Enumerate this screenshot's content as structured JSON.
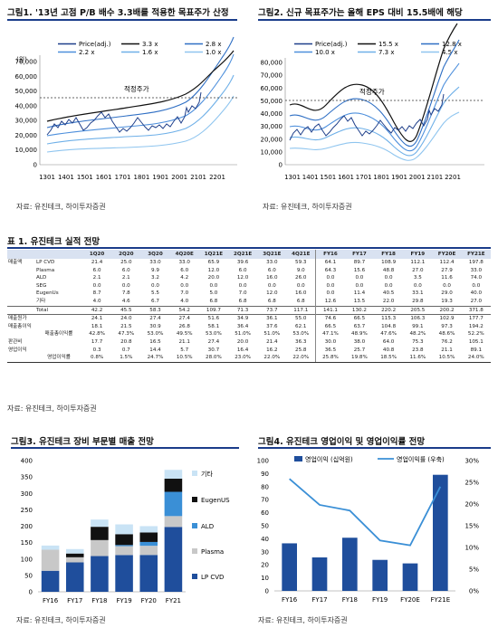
{
  "fig1": {
    "title": "그림1. '13년 고점 P/B 배수 3.3배를 적용한 목표주가 산정",
    "unit": "(원)",
    "legend": [
      "Price(adj.)",
      "3.3 x",
      "2.8 x",
      "2.2 x",
      "1.6 x",
      "1.0 x"
    ],
    "y_ticks": [
      "70,000",
      "60,000",
      "50,000",
      "40,000",
      "30,000",
      "20,000",
      "10,000",
      "0"
    ],
    "x_ticks": [
      "1301",
      "1401",
      "1501",
      "1601",
      "1701",
      "1801",
      "1901",
      "2001",
      "2101",
      "2201"
    ],
    "target_label": "적정주가",
    "source": "자료: 유진테크, 하이투자증권"
  },
  "fig2": {
    "title": "그림2. 신규 목표주가는 올해 EPS 대비 15.5배에 해당",
    "legend": [
      "Price(adj.)",
      "15.5 x",
      "12.8 x",
      "10.0 x",
      "7.3 x",
      "4.5 x"
    ],
    "y_ticks": [
      "80,000",
      "70,000",
      "60,000",
      "50,000",
      "40,000",
      "30,000",
      "20,000",
      "10,000",
      "0"
    ],
    "x_ticks": [
      "1301",
      "1401",
      "1501",
      "1601",
      "1701",
      "1801",
      "1901",
      "2001",
      "2101",
      "2201"
    ],
    "target_label": "적정주가",
    "source": "자료: 유진테크, 하이투자증권"
  },
  "table": {
    "title": "표 1. 유진테크 실적 전망",
    "headers": [
      "",
      "",
      "1Q20",
      "2Q20",
      "3Q20",
      "4Q20E",
      "1Q21E",
      "2Q21E",
      "3Q21E",
      "4Q21E",
      "FY16",
      "FY17",
      "FY18",
      "FY19",
      "FY20E",
      "FY21E"
    ],
    "rows": [
      [
        "매출액",
        "LP CVD",
        "21.4",
        "25.0",
        "33.0",
        "33.0",
        "65.9",
        "39.6",
        "33.0",
        "59.3",
        "64.1",
        "89.7",
        "108.9",
        "112.1",
        "112.4",
        "197.8"
      ],
      [
        "",
        "Plasma",
        "6.0",
        "6.0",
        "9.9",
        "6.0",
        "12.0",
        "6.0",
        "6.0",
        "9.0",
        "64.3",
        "15.6",
        "48.8",
        "27.0",
        "27.9",
        "33.0"
      ],
      [
        "",
        "ALD",
        "2.1",
        "2.1",
        "3.2",
        "4.2",
        "20.0",
        "12.0",
        "16.0",
        "26.0",
        "0.0",
        "0.0",
        "0.0",
        "3.5",
        "11.6",
        "74.0"
      ],
      [
        "",
        "SEG",
        "0.0",
        "0.0",
        "0.0",
        "0.0",
        "0.0",
        "0.0",
        "0.0",
        "0.0",
        "0.0",
        "0.0",
        "0.0",
        "0.0",
        "0.0",
        "0.0"
      ],
      [
        "",
        "EugenUs",
        "8.7",
        "7.8",
        "5.5",
        "7.0",
        "5.0",
        "7.0",
        "12.0",
        "16.0",
        "0.0",
        "11.4",
        "40.5",
        "33.1",
        "29.0",
        "40.0"
      ],
      [
        "",
        "기타",
        "4.0",
        "4.6",
        "6.7",
        "4.0",
        "6.8",
        "6.8",
        "6.8",
        "6.8",
        "12.6",
        "13.5",
        "22.0",
        "29.8",
        "19.3",
        "27.0"
      ],
      [
        "",
        "Total",
        "42.2",
        "45.5",
        "58.3",
        "54.2",
        "109.7",
        "71.3",
        "73.7",
        "117.1",
        "141.1",
        "130.2",
        "220.2",
        "205.5",
        "200.2",
        "371.8"
      ],
      [
        "매출원가",
        "",
        "24.1",
        "24.0",
        "27.4",
        "27.4",
        "51.6",
        "34.9",
        "36.1",
        "55.0",
        "74.6",
        "66.5",
        "115.3",
        "106.3",
        "102.9",
        "177.7"
      ],
      [
        "매출총이익",
        "",
        "18.1",
        "21.5",
        "30.9",
        "26.8",
        "58.1",
        "36.4",
        "37.6",
        "62.1",
        "66.5",
        "63.7",
        "104.8",
        "99.1",
        "97.3",
        "194.2"
      ],
      [
        "",
        "매출총이익률",
        "42.8%",
        "47.3%",
        "53.0%",
        "49.5%",
        "53.0%",
        "51.0%",
        "51.0%",
        "53.0%",
        "47.1%",
        "48.9%",
        "47.6%",
        "48.2%",
        "48.6%",
        "52.2%"
      ],
      [
        "판관비",
        "",
        "17.7",
        "20.8",
        "16.5",
        "21.1",
        "27.4",
        "20.0",
        "21.4",
        "36.3",
        "30.0",
        "38.0",
        "64.0",
        "75.3",
        "76.2",
        "105.1"
      ],
      [
        "영업이익",
        "",
        "0.3",
        "0.7",
        "14.4",
        "5.7",
        "30.7",
        "16.4",
        "16.2",
        "25.8",
        "36.5",
        "25.7",
        "40.8",
        "23.8",
        "21.1",
        "89.1"
      ],
      [
        "",
        "영업이익률",
        "0.8%",
        "1.5%",
        "24.7%",
        "10.5%",
        "28.0%",
        "23.0%",
        "22.0%",
        "22.0%",
        "25.8%",
        "19.8%",
        "18.5%",
        "11.6%",
        "10.5%",
        "24.0%"
      ]
    ],
    "source": "자료: 유진테크, 하이투자증권"
  },
  "fig3": {
    "title": "그림3. 유진테크 장비 부문별 매출 전망",
    "source": "자료: 유진테크, 하이투자증권"
  },
  "fig4": {
    "title": "그림4. 유진테크 영업이익 및 영업이익률 전망",
    "source": "자료: 유진테크, 하이투자증권"
  },
  "chart_data": [
    {
      "type": "bar",
      "stacked": true,
      "categories": [
        "FY16",
        "FY17",
        "FY18",
        "FY19",
        "FY20",
        "FY21"
      ],
      "series": [
        {
          "name": "LP CVD",
          "values": [
            64.1,
            89.7,
            108.9,
            112.1,
            112.4,
            197.8
          ],
          "color": "#1f4e9c"
        },
        {
          "name": "Plasma",
          "values": [
            64.3,
            15.6,
            48.8,
            27.0,
            27.9,
            33.0
          ],
          "color": "#c8c8c8"
        },
        {
          "name": "ALD",
          "values": [
            0.0,
            0.0,
            0.0,
            3.5,
            11.6,
            74.0
          ],
          "color": "#3a8fd6"
        },
        {
          "name": "EugenUS",
          "values": [
            0.0,
            11.4,
            40.5,
            33.1,
            29.0,
            40.0
          ],
          "color": "#111111"
        },
        {
          "name": "기타",
          "values": [
            12.6,
            13.5,
            22.0,
            29.8,
            19.3,
            27.0
          ],
          "color": "#c9e3f5"
        }
      ],
      "y_ticks": [
        "0",
        "50",
        "100",
        "150",
        "200",
        "250",
        "300",
        "350",
        "400"
      ],
      "ylim": [
        0,
        400
      ],
      "legend_position": "right"
    },
    {
      "type": "bar",
      "categories": [
        "FY16",
        "FY17",
        "FY18",
        "FY19",
        "FY20E",
        "FY21E"
      ],
      "series": [
        {
          "name": "영업이익 (십억원)",
          "type": "bar",
          "axis": "left",
          "values": [
            36.5,
            25.7,
            40.8,
            23.8,
            21.1,
            89.1
          ],
          "color": "#1f4e9c"
        },
        {
          "name": "영업이익률 (우축)",
          "type": "line",
          "axis": "right",
          "values": [
            25.8,
            19.8,
            18.5,
            11.6,
            10.5,
            24.0
          ],
          "color": "#3a8fd6"
        }
      ],
      "y_ticks": [
        "0",
        "10",
        "20",
        "30",
        "40",
        "50",
        "60",
        "70",
        "80",
        "90",
        "100"
      ],
      "y2_ticks": [
        "0%",
        "5%",
        "10%",
        "15%",
        "20%",
        "25%",
        "30%"
      ],
      "ylim": [
        0,
        100
      ],
      "y2lim": [
        0,
        30
      ],
      "legend_position": "top"
    }
  ]
}
